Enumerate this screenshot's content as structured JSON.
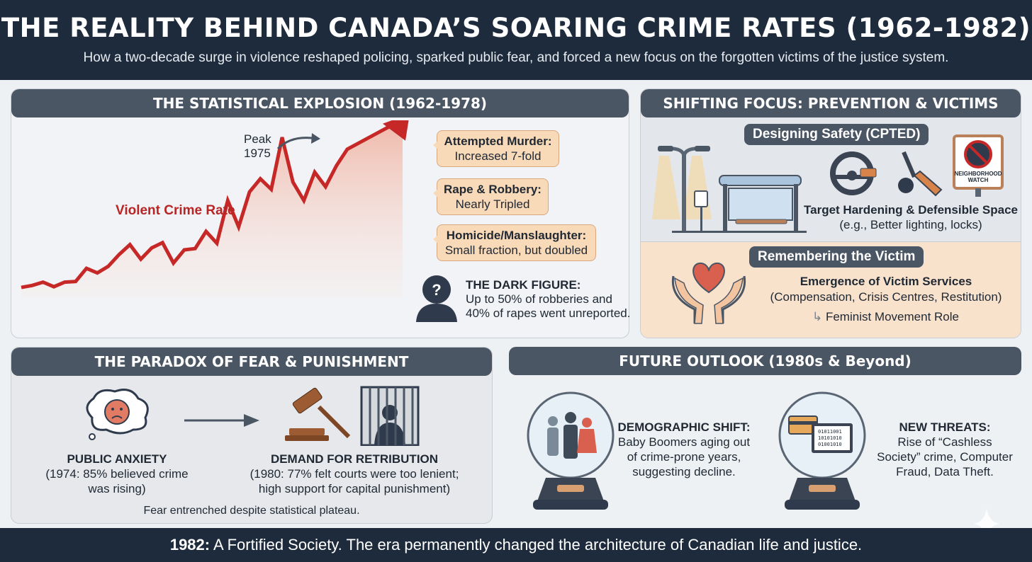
{
  "header": {
    "title": "THE REALITY BEHIND CANADA’S SOARING CRIME RATES (1962-1982)",
    "subtitle": "How a two-decade surge in violence reshaped policing, sparked public fear, and forced a new focus on the forgotten victims of the justice system."
  },
  "stats": {
    "title": "THE STATISTICAL EXPLOSION (1962-1978)",
    "peak_label": "Peak",
    "peak_year": "1975",
    "series_label": "Violent Crime Rate",
    "callouts": [
      {
        "title": "Attempted Murder:",
        "text": "Increased 7-fold"
      },
      {
        "title": "Rape & Robbery:",
        "text": "Nearly Tripled"
      },
      {
        "title": "Homicide/Manslaughter:",
        "text": "Small fraction, but doubled"
      }
    ],
    "dark_figure": {
      "title": "THE DARK FIGURE:",
      "line1": "Up to 50% of robberies and",
      "line2": "40% of rapes went unreported."
    }
  },
  "chart_data": {
    "type": "line",
    "title": "Violent Crime Rate",
    "xlabel": "",
    "ylabel": "",
    "trend_index": [
      15,
      18,
      23,
      16,
      23,
      24,
      44,
      37,
      47,
      65,
      80,
      58,
      75,
      83,
      52,
      72,
      74,
      100,
      82,
      147,
      107,
      160,
      180,
      164,
      243,
      175,
      147,
      190,
      168,
      200,
      225
    ],
    "annotation": "Peak 1975",
    "color": "#c62828"
  },
  "shifting": {
    "title": "SHIFTING FOCUS: PREVENTION & VICTIMS",
    "cpted": "Designing Safety (CPTED)",
    "sign": "NEIGHBORHOOD WATCH",
    "hardening_title": "Target Hardening & Defensible Space",
    "hardening_text": "(e.g., Better lighting, locks)",
    "victim_pill": "Remembering the Victim",
    "victim_title": "Emergence of Victim Services",
    "victim_text": "(Compensation, Crisis Centres, Restitution)",
    "feminist": "Feminist Movement Role"
  },
  "paradox": {
    "title": "THE PARADOX OF FEAR & PUNISHMENT",
    "anxiety_title": "PUBLIC ANXIETY",
    "anxiety_l1": "(1974: 85% believed crime",
    "anxiety_l2": "was rising)",
    "retribution_title": "DEMAND FOR RETRIBUTION",
    "retribution_l1": "(1980: 77% felt courts were too lenient;",
    "retribution_l2": "high support for capital punishment)",
    "footer": "Fear entrenched despite statistical plateau."
  },
  "future": {
    "title": "FUTURE OUTLOOK (1980s & Beyond)",
    "demo_title": "DEMOGRAPHIC SHIFT:",
    "demo_l1": "Baby Boomers aging out",
    "demo_l2": "of crime-prone years,",
    "demo_l3": "suggesting decline.",
    "threat_title": "NEW THREATS:",
    "threat_l1": "Rise of “Cashless",
    "threat_l2": "Society” crime, Computer",
    "threat_l3": "Fraud, Data Theft.",
    "binary": [
      "01011001",
      "10101010",
      "01001010"
    ]
  },
  "footer": {
    "year": "1982:",
    "text": " A Fortified Society. The era permanently changed the architecture of Canadian life and justice."
  },
  "colors": {
    "navy": "#1e2b3c",
    "bar": "#4b5664",
    "red": "#c62828",
    "peach": "#f8d9b8"
  }
}
